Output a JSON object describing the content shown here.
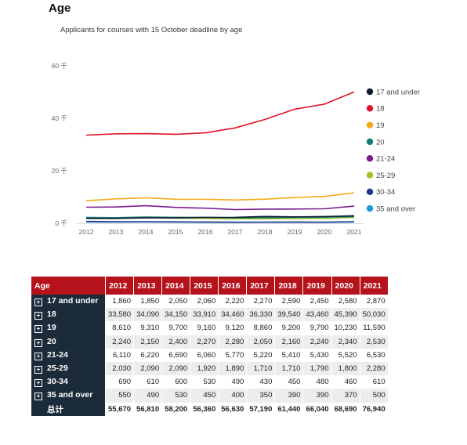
{
  "heading": "Age",
  "chart_data": {
    "type": "line",
    "title": "Applicants for courses with 15 October deadline by age",
    "x": [
      "2012",
      "2013",
      "2014",
      "2015",
      "2016",
      "2017",
      "2018",
      "2019",
      "2020",
      "2021"
    ],
    "ylim": [
      0,
      60000
    ],
    "y_ticks": [
      {
        "value": 0,
        "label": "0 千"
      },
      {
        "value": 20000,
        "label": "20 千"
      },
      {
        "value": 40000,
        "label": "40 千"
      },
      {
        "value": 60000,
        "label": "60 千"
      }
    ],
    "grid": false,
    "legend_position": "right",
    "series": [
      {
        "name": "17 and under",
        "color": "#111d33",
        "values": [
          1860,
          1850,
          2050,
          2060,
          2220,
          2270,
          2590,
          2450,
          2580,
          2870
        ]
      },
      {
        "name": "18",
        "color": "#e0122b",
        "values": [
          33580,
          34090,
          34150,
          33910,
          34460,
          36330,
          39540,
          43460,
          45390,
          50030
        ]
      },
      {
        "name": "19",
        "color": "#f6a81c",
        "values": [
          8610,
          9310,
          9700,
          9160,
          9120,
          8860,
          9200,
          9790,
          10230,
          11590
        ]
      },
      {
        "name": "20",
        "color": "#127a78",
        "values": [
          2240,
          2150,
          2400,
          2270,
          2280,
          2050,
          2160,
          2240,
          2340,
          2530
        ]
      },
      {
        "name": "21-24",
        "color": "#7b1c8e",
        "values": [
          6110,
          6220,
          6690,
          6060,
          5770,
          5220,
          5410,
          5430,
          5520,
          6530
        ]
      },
      {
        "name": "25-29",
        "color": "#9ec42a",
        "values": [
          2030,
          2090,
          2090,
          1920,
          1890,
          1710,
          1710,
          1790,
          1800,
          2280
        ]
      },
      {
        "name": "30-34",
        "color": "#1e3690",
        "values": [
          690,
          610,
          600,
          530,
          490,
          430,
          450,
          480,
          460,
          610
        ]
      },
      {
        "name": "35 and over",
        "color": "#1b9bd8",
        "values": [
          550,
          490,
          530,
          450,
          400,
          350,
          390,
          390,
          370,
          500
        ]
      }
    ]
  },
  "table": {
    "corner_label": "Age",
    "total_label": "总计",
    "totals": [
      "55,670",
      "56,810",
      "58,200",
      "56,360",
      "56,630",
      "57,190",
      "61,440",
      "66,040",
      "68,690",
      "76,940"
    ]
  }
}
